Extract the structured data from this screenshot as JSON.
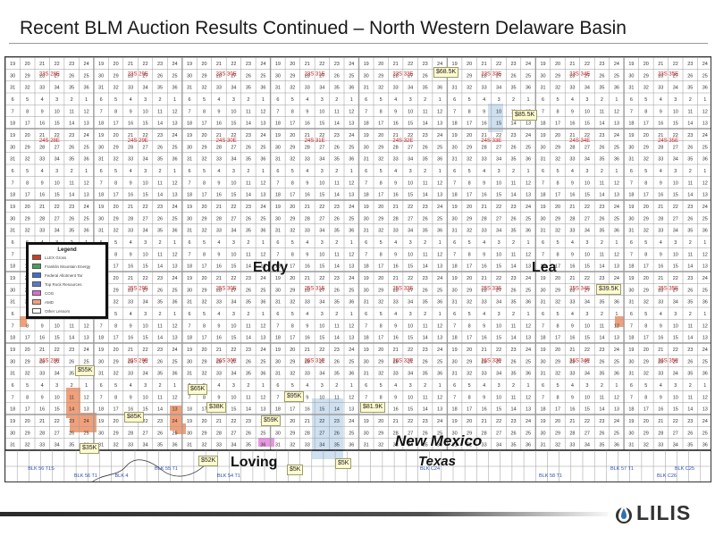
{
  "title": "Recent BLM Auction Results Continued – North Western Delaware Basin",
  "legend": {
    "title": "Legend",
    "items": [
      {
        "label": "LLEX Gross",
        "color": "#d33a1e"
      },
      {
        "label": "Franklin Mountain Energy",
        "color": "#4aa05a"
      },
      {
        "label": "Federal Allotment Tar",
        "color": "#3b6fd6"
      },
      {
        "label": "Top Rock Resources",
        "color": "#5a7ad0"
      },
      {
        "label": "COG",
        "color": "#e06bd4"
      },
      {
        "label": "AMD",
        "color": "#f2a27c"
      },
      {
        "label": "Other Lessors",
        "color": "#ffffff"
      }
    ]
  },
  "counties": {
    "eddy": "Eddy",
    "lea": "Lea",
    "loving": "Loving"
  },
  "states": {
    "new_mexico": "New Mexico",
    "texas": "Texas"
  },
  "price_tags": [
    "$68.5K",
    "$85.5K",
    "$39.5K",
    "$55K",
    "$65K",
    "$95K",
    "$85K",
    "$38K",
    "$81.9K",
    "$59K",
    "$35K",
    "$52K",
    "$5K",
    "$5K"
  ],
  "township_labels": [
    "23S 28E",
    "23S 29E",
    "23S 30E",
    "23S 31E",
    "23S 32E",
    "23S 33E",
    "23S 34E",
    "23S 35E",
    "24S 28E",
    "24S 29E",
    "24S 30E",
    "24S 31E",
    "24S 32E",
    "24S 33E",
    "24S 34E",
    "24S 35E",
    "25S 28E",
    "25S 29E",
    "25S 30E",
    "25S 31E",
    "25S 32E",
    "25S 33E",
    "25S 34E",
    "25S 35E",
    "26S 28E",
    "26S 29E",
    "26S 30E",
    "26S 31E",
    "26S 32E",
    "26S 33E",
    "26S 34E",
    "26S 35E"
  ],
  "block_labels": [
    "BLK 56 T1S",
    "BLK 56 T1",
    "BLK 55 T1",
    "BLK 54 T1",
    "BLK C24",
    "BLK 58 T1",
    "BLK 57 T1",
    "BLK C26",
    "BLK C25",
    "BLK 4"
  ],
  "logo_text": "LILIS",
  "colors": {
    "auction_parcel": "#f0a07a",
    "highlight_blue": "#cfe0f0",
    "township_label": "#c02020",
    "block_label": "#2a4fb0",
    "grid": "#9b9b9b"
  }
}
